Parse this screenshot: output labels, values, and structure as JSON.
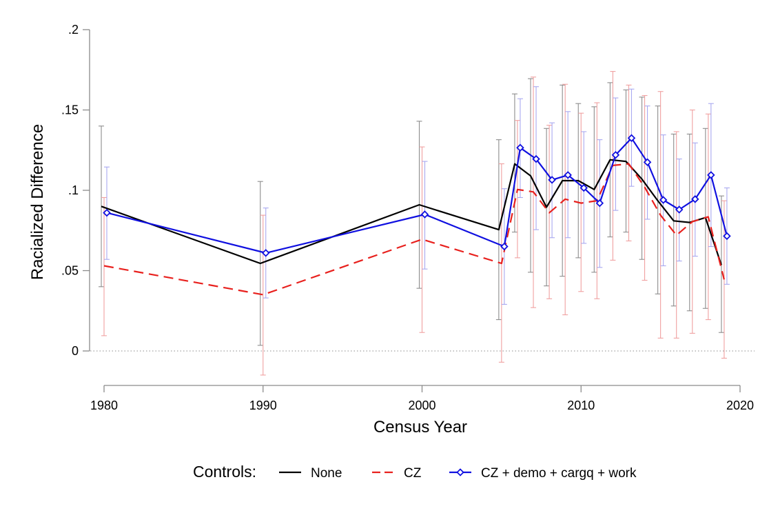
{
  "chart_data": {
    "type": "line",
    "title": "",
    "xlabel": "Census Year",
    "ylabel": "Racialized Difference",
    "xlim": [
      1980,
      2020
    ],
    "ylim": [
      0,
      0.2
    ],
    "xticks": [
      1980,
      1990,
      2000,
      2010,
      2020
    ],
    "yticks": [
      0,
      0.05,
      0.1,
      0.15,
      0.2
    ],
    "xtick_labels": [
      "1980",
      "1990",
      "2000",
      "2010",
      "2020"
    ],
    "ytick_labels": [
      "0",
      ".05",
      ".1",
      ".15",
      ".2"
    ],
    "reference_line_y": 0,
    "grid": false,
    "legend": {
      "title": "Controls:",
      "placement": "bottom",
      "entries": [
        "None",
        "CZ",
        "CZ + demo + cargq + work"
      ]
    },
    "series": [
      {
        "name": "None",
        "color": "#000000",
        "style": "solid",
        "marker": "none",
        "x": [
          1980,
          1990,
          2000,
          2005,
          2006,
          2007,
          2008,
          2009,
          2010,
          2011,
          2012,
          2013,
          2014,
          2015,
          2016,
          2017,
          2018,
          2019
        ],
        "y": [
          0.09,
          0.0545,
          0.091,
          0.0755,
          0.1165,
          0.109,
          0.0895,
          0.106,
          0.106,
          0.1005,
          0.119,
          0.118,
          0.107,
          0.0935,
          0.081,
          0.08,
          0.083,
          0.0535
        ],
        "ci_low": [
          0.04,
          0.0035,
          0.039,
          0.0195,
          0.074,
          0.049,
          0.0405,
          0.0465,
          0.058,
          0.049,
          0.071,
          0.074,
          0.057,
          0.0355,
          0.028,
          0.025,
          0.0265,
          0.0115
        ],
        "ci_high": [
          0.14,
          0.1055,
          0.143,
          0.1315,
          0.16,
          0.1695,
          0.1385,
          0.1655,
          0.154,
          0.152,
          0.167,
          0.1625,
          0.158,
          0.1525,
          0.135,
          0.135,
          0.1385,
          0.0965
        ]
      },
      {
        "name": "CZ",
        "color": "#e8201d",
        "style": "dashed",
        "marker": "none",
        "x": [
          1980,
          1990,
          2000,
          2005,
          2006,
          2007,
          2008,
          2009,
          2010,
          2011,
          2012,
          2013,
          2014,
          2015,
          2016,
          2017,
          2018,
          2019
        ],
        "y": [
          0.053,
          0.035,
          0.0695,
          0.0545,
          0.1005,
          0.099,
          0.086,
          0.0945,
          0.092,
          0.0935,
          0.1155,
          0.1165,
          0.102,
          0.0845,
          0.072,
          0.0805,
          0.0835,
          0.0445
        ],
        "ci_low": [
          0.0095,
          -0.015,
          0.0115,
          -0.007,
          0.058,
          0.027,
          0.0325,
          0.0225,
          0.037,
          0.0325,
          0.0565,
          0.0685,
          0.044,
          0.008,
          0.008,
          0.011,
          0.0195,
          -0.0045
        ],
        "ci_high": [
          0.0955,
          0.0845,
          0.127,
          0.1165,
          0.1435,
          0.1705,
          0.1405,
          0.166,
          0.148,
          0.1545,
          0.174,
          0.1655,
          0.159,
          0.1615,
          0.1365,
          0.15,
          0.1475,
          0.0935
        ]
      },
      {
        "name": "CZ + demo + cargq + work",
        "color": "#1010e0",
        "style": "solid",
        "marker": "diamond",
        "x": [
          1980,
          1990,
          2000,
          2005,
          2006,
          2007,
          2008,
          2009,
          2010,
          2011,
          2012,
          2013,
          2014,
          2015,
          2016,
          2017,
          2018,
          2019
        ],
        "y": [
          0.086,
          0.061,
          0.085,
          0.065,
          0.1265,
          0.1195,
          0.1065,
          0.1095,
          0.1015,
          0.092,
          0.122,
          0.1325,
          0.1175,
          0.094,
          0.088,
          0.0945,
          0.1095,
          0.0715
        ],
        "ci_low": [
          0.057,
          0.033,
          0.051,
          0.029,
          0.0955,
          0.0755,
          0.0705,
          0.0705,
          0.067,
          0.052,
          0.0875,
          0.1025,
          0.082,
          0.053,
          0.056,
          0.059,
          0.065,
          0.0415
        ],
        "ci_high": [
          0.1145,
          0.089,
          0.118,
          0.101,
          0.157,
          0.1645,
          0.142,
          0.149,
          0.1365,
          0.1315,
          0.1575,
          0.163,
          0.1525,
          0.1345,
          0.1195,
          0.1295,
          0.154,
          0.1015
        ]
      }
    ]
  }
}
